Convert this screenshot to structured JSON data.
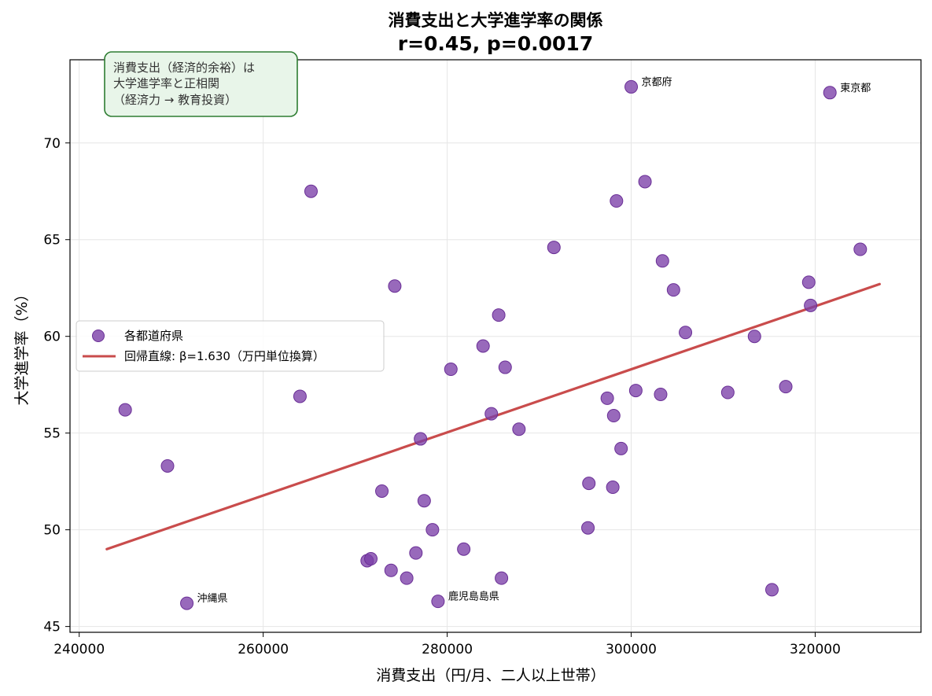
{
  "chart_data": {
    "type": "scatter",
    "title": "消費支出と大学進学率の関係",
    "subtitle": "r=0.45, p=0.0017",
    "xlabel": "消費支出（円/月、二人以上世帯）",
    "ylabel": "大学進学率（%）",
    "xlim": [
      239000,
      331500
    ],
    "ylim": [
      44.7,
      74.3
    ],
    "xticks": [
      240000,
      260000,
      280000,
      300000,
      320000
    ],
    "yticks": [
      45,
      50,
      55,
      60,
      65,
      70
    ],
    "grid": true,
    "legend_position": "center-left",
    "colors": {
      "points": "#7b3fa8",
      "line": "#c94c4c",
      "note_border": "#2e7d32",
      "note_fill": "#e8f5e9"
    },
    "series": [
      {
        "name": "各都道府県",
        "kind": "scatter",
        "points": [
          {
            "x": 245000,
            "y": 56.2
          },
          {
            "x": 249600,
            "y": 53.3
          },
          {
            "x": 251700,
            "y": 46.2,
            "label": "沖縄県"
          },
          {
            "x": 264000,
            "y": 56.9
          },
          {
            "x": 265200,
            "y": 67.5
          },
          {
            "x": 271300,
            "y": 48.4
          },
          {
            "x": 271700,
            "y": 48.5
          },
          {
            "x": 272900,
            "y": 52.0
          },
          {
            "x": 273900,
            "y": 47.9
          },
          {
            "x": 274300,
            "y": 62.6
          },
          {
            "x": 275600,
            "y": 47.5
          },
          {
            "x": 276600,
            "y": 48.8
          },
          {
            "x": 277100,
            "y": 54.7
          },
          {
            "x": 277500,
            "y": 51.5
          },
          {
            "x": 278400,
            "y": 50.0
          },
          {
            "x": 279000,
            "y": 46.3,
            "label": "鹿児島島県"
          },
          {
            "x": 280400,
            "y": 58.3
          },
          {
            "x": 281800,
            "y": 49.0
          },
          {
            "x": 283900,
            "y": 59.5
          },
          {
            "x": 284800,
            "y": 56.0
          },
          {
            "x": 285600,
            "y": 61.1
          },
          {
            "x": 285900,
            "y": 47.5
          },
          {
            "x": 286300,
            "y": 58.4
          },
          {
            "x": 287800,
            "y": 55.2
          },
          {
            "x": 291600,
            "y": 64.6
          },
          {
            "x": 295300,
            "y": 50.1
          },
          {
            "x": 295400,
            "y": 52.4
          },
          {
            "x": 297400,
            "y": 56.8
          },
          {
            "x": 298000,
            "y": 52.2
          },
          {
            "x": 298100,
            "y": 55.9
          },
          {
            "x": 298400,
            "y": 67.0
          },
          {
            "x": 298900,
            "y": 54.2
          },
          {
            "x": 300000,
            "y": 72.9,
            "label": "京都府"
          },
          {
            "x": 300500,
            "y": 57.2
          },
          {
            "x": 301500,
            "y": 68.0
          },
          {
            "x": 303200,
            "y": 57.0
          },
          {
            "x": 303400,
            "y": 63.9
          },
          {
            "x": 304600,
            "y": 62.4
          },
          {
            "x": 305900,
            "y": 60.2
          },
          {
            "x": 310500,
            "y": 57.1
          },
          {
            "x": 313400,
            "y": 60.0
          },
          {
            "x": 315300,
            "y": 46.9
          },
          {
            "x": 316800,
            "y": 57.4
          },
          {
            "x": 319300,
            "y": 62.8
          },
          {
            "x": 319500,
            "y": 61.6
          },
          {
            "x": 321600,
            "y": 72.6,
            "label": "東京都"
          },
          {
            "x": 324900,
            "y": 64.5
          }
        ]
      },
      {
        "name": "回帰直線: β=1.630（万円単位換算）",
        "kind": "line",
        "points": [
          {
            "x": 243000,
            "y": 49.0
          },
          {
            "x": 327000,
            "y": 62.7
          }
        ]
      }
    ],
    "annotation_box": {
      "lines": [
        "消費支出（経済的余裕）は",
        "大学進学率と正相関",
        "（経済力 → 教育投資）"
      ]
    }
  }
}
